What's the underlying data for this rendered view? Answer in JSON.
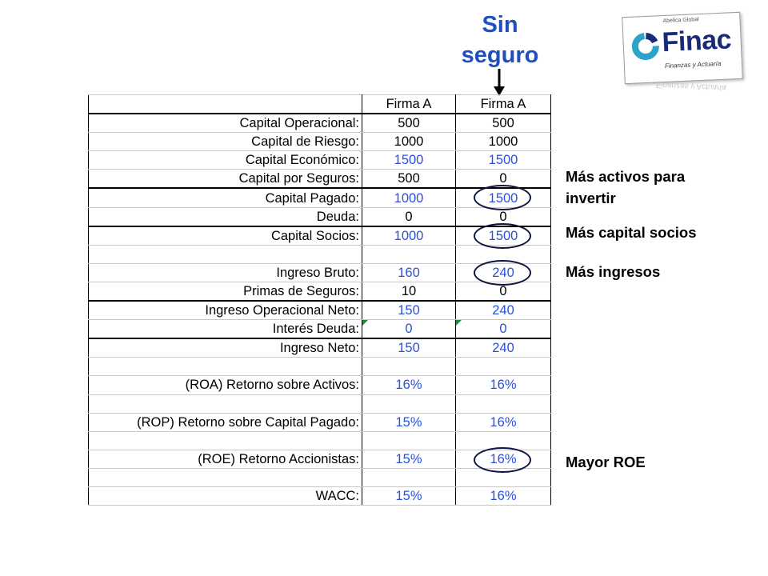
{
  "title": "Sin seguro",
  "logo": {
    "superscript": "Abelica Global",
    "wordmark": "Finac",
    "tagline": "Finanzas y Actuaría",
    "colors": {
      "wordmark": "#1a2a7a",
      "ring": "#2aa4c8"
    }
  },
  "table": {
    "headers": [
      "Firma A",
      "Firma A"
    ],
    "rows": [
      {
        "label": "Capital Operacional:",
        "a": "500",
        "b": "500",
        "color": "black",
        "thick": false
      },
      {
        "label": "Capital de Riesgo:",
        "a": "1000",
        "b": "1000",
        "color": "black",
        "thick": false
      },
      {
        "label": "Capital Económico:",
        "a": "1500",
        "b": "1500",
        "color": "blue",
        "thick": false
      },
      {
        "label": "Capital por Seguros:",
        "a": "500",
        "b": "0",
        "color": "black",
        "thick": false
      },
      {
        "label": "Capital Pagado:",
        "a": "1000",
        "b": "1500",
        "color": "blue",
        "thick": true
      },
      {
        "label": "Deuda:",
        "a": "0",
        "b": "0",
        "color": "black",
        "thick": false
      },
      {
        "label": "Capital Socios:",
        "a": "1000",
        "b": "1500",
        "color": "blue",
        "thick": true
      },
      {
        "label": "",
        "a": "",
        "b": "",
        "color": "black",
        "thick": false
      },
      {
        "label": "Ingreso Bruto:",
        "a": "160",
        "b": "240",
        "color": "blue",
        "thick": false
      },
      {
        "label": "Primas de Seguros:",
        "a": "10",
        "b": "0",
        "color": "black",
        "thick": false
      },
      {
        "label": "Ingreso Operacional Neto:",
        "a": "150",
        "b": "240",
        "color": "blue",
        "thick": true
      },
      {
        "label": "Interés Deuda:",
        "a": "0",
        "b": "0",
        "color": "blue",
        "thick": false,
        "marker": true
      },
      {
        "label": "Ingreso Neto:",
        "a": "150",
        "b": "240",
        "color": "blue",
        "thick": true
      },
      {
        "label": "",
        "a": "",
        "b": "",
        "color": "black",
        "thick": false
      },
      {
        "label": "(ROA) Retorno sobre Activos:",
        "a": "16%",
        "b": "16%",
        "color": "blue",
        "thick": false
      },
      {
        "label": "",
        "a": "",
        "b": "",
        "color": "black",
        "thick": false
      },
      {
        "label": "(ROP) Retorno sobre Capital Pagado:",
        "a": "15%",
        "b": "16%",
        "color": "blue",
        "thick": false
      },
      {
        "label": "",
        "a": "",
        "b": "",
        "color": "black",
        "thick": false
      },
      {
        "label": "(ROE) Retorno Accionistas:",
        "a": "15%",
        "b": "16%",
        "color": "blue",
        "thick": false
      },
      {
        "label": "",
        "a": "",
        "b": "",
        "color": "black",
        "thick": false
      },
      {
        "label": "WACC:",
        "a": "15%",
        "b": "16%",
        "color": "blue",
        "thick": false
      }
    ]
  },
  "annotations": {
    "activos": "Más activos para invertir",
    "socios": "Más capital socios",
    "ingresos": "Más ingresos",
    "roe": "Mayor ROE"
  }
}
